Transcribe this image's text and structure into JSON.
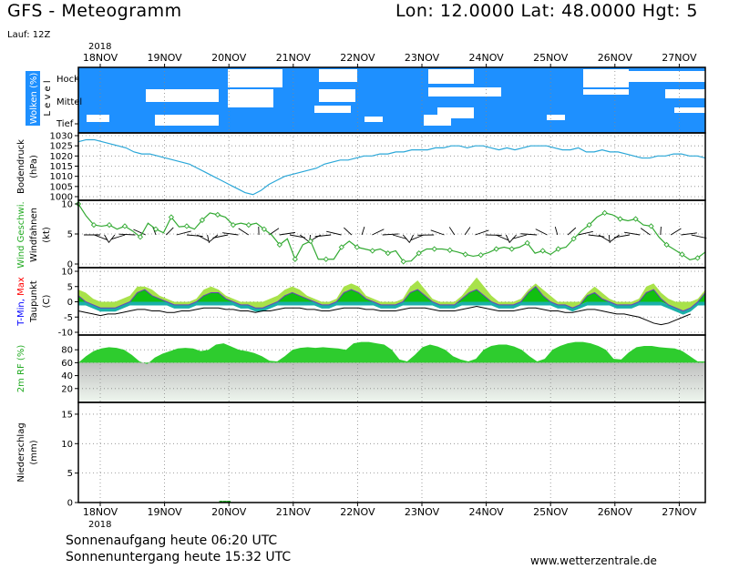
{
  "header": {
    "title": "GFS - Meteogramm",
    "coords": "Lon: 12.0000 Lat: 48.0000 Hgt: 5",
    "run": "Lauf: 12Z"
  },
  "footer": {
    "sunrise": "Sonnenaufgang heute 06:20 UTC",
    "sunset": "Sonnenuntergang heute 15:32 UTC",
    "site": "www.wetterzentrale.de"
  },
  "colors": {
    "cloud_bg": "#1e90ff",
    "pressure_line": "#2aa7d8",
    "wind_speed": "#33aa33",
    "precip": "#22aa22",
    "rh_fill": "#2ecc2e",
    "tmin_label": "#0000ff",
    "tmax_label": "#ff0000",
    "wind_label": "#22aa22"
  },
  "chart_data": {
    "type": "line",
    "days": [
      "18NOV",
      "19NOV",
      "20NOV",
      "21NOV",
      "22NOV",
      "23NOV",
      "24NOV",
      "25NOV",
      "26NOV",
      "27NOV"
    ],
    "year": "2018",
    "panels": {
      "clouds": {
        "ylabel": "Wolken (%)",
        "ylabel2": "L e v e l",
        "levels": [
          "Hoch",
          "Mittel",
          "Tief"
        ]
      },
      "pressure": {
        "ylabel": "Bodendruck",
        "unit": "(hPa)",
        "ylim": [
          1000,
          1030
        ],
        "ticks": [
          1000,
          1005,
          1010,
          1015,
          1020,
          1025,
          1030
        ],
        "values": [
          1027,
          1028,
          1028,
          1027,
          1026,
          1025,
          1024,
          1022,
          1021,
          1021,
          1020,
          1019,
          1018,
          1017,
          1016,
          1014,
          1012,
          1010,
          1008,
          1006,
          1004,
          1002,
          1001,
          1003,
          1006,
          1008,
          1010,
          1011,
          1012,
          1013,
          1014,
          1016,
          1017,
          1018,
          1018,
          1019,
          1020,
          1020,
          1021,
          1021,
          1022,
          1022,
          1023,
          1023,
          1023,
          1024,
          1024,
          1025,
          1025,
          1024,
          1025,
          1025,
          1024,
          1023,
          1024,
          1023,
          1024,
          1025,
          1025,
          1025,
          1024,
          1023,
          1023,
          1024,
          1022,
          1022,
          1023,
          1022,
          1022,
          1021,
          1020,
          1019,
          1019,
          1020,
          1020,
          1021,
          1021,
          1020,
          1020,
          1019
        ]
      },
      "wind": {
        "ylabel": "Wind Geschwi.",
        "ylabel2": "Windfahnen",
        "unit": "(kt)",
        "ylim": [
          0,
          10
        ],
        "ticks": [
          0,
          5,
          10
        ],
        "values": [
          10,
          8,
          6.5,
          6.3,
          6.5,
          5.8,
          6.3,
          5.5,
          4.5,
          6.8,
          5.8,
          5.2,
          7.8,
          6.2,
          6.3,
          5.8,
          7.3,
          8.5,
          8.2,
          7.8,
          6.5,
          6.8,
          6.5,
          6.8,
          5.8,
          4.8,
          3.2,
          4.2,
          0.8,
          3.2,
          3.8,
          0.8,
          0.8,
          0.8,
          2.8,
          3.8,
          2.8,
          2.5,
          2.2,
          2.5,
          1.8,
          2.2,
          0.4,
          0.5,
          1.8,
          2.5,
          2.5,
          2.5,
          2.3,
          2.0,
          1.6,
          1.3,
          1.5,
          1.9,
          2.5,
          2.8,
          2.5,
          2.8,
          3.5,
          1.8,
          2.2,
          1.6,
          2.5,
          2.8,
          4.2,
          5.5,
          6.5,
          7.8,
          8.5,
          8.2,
          7.5,
          7.2,
          7.5,
          6.5,
          6.3,
          4.5,
          3.2,
          2.4,
          1.6,
          0.7,
          1.0,
          2.0
        ]
      },
      "temperature": {
        "ylabel_parts": [
          "T-Min,",
          "Max"
        ],
        "ylabel2": "Taupunkt",
        "unit": "(C)",
        "ylim": [
          -10,
          10
        ],
        "ticks": [
          -10,
          -5,
          0,
          5,
          10
        ],
        "temp": [
          2,
          0,
          -1,
          -2,
          -2,
          -2,
          -1,
          0,
          3,
          4,
          2,
          1,
          0,
          -1,
          -1,
          -1,
          0,
          2,
          3,
          3,
          1,
          0,
          -1,
          -1,
          -2,
          -2,
          -1,
          0,
          2,
          3,
          2,
          1,
          0,
          -1,
          -1,
          0,
          3,
          4,
          3,
          1,
          0,
          -1,
          -1,
          -1,
          0,
          3,
          4,
          2,
          0,
          -1,
          -1,
          -1,
          1,
          3,
          4,
          2,
          0,
          -1,
          -1,
          -1,
          0,
          3,
          5,
          2,
          0,
          -1,
          -1,
          -2,
          -1,
          2,
          3,
          1,
          0,
          -1,
          -1,
          -1,
          0,
          3,
          4,
          1,
          -1,
          -2,
          -3,
          -2,
          0,
          3
        ],
        "tmax": [
          4,
          3,
          1,
          0,
          0,
          0,
          1,
          2,
          5,
          5,
          4,
          2,
          1,
          0,
          0,
          0,
          1,
          4,
          5,
          4,
          2,
          1,
          0,
          0,
          0,
          0,
          1,
          2,
          4,
          5,
          4,
          2,
          1,
          0,
          0,
          1,
          5,
          6,
          5,
          2,
          1,
          0,
          0,
          0,
          1,
          5,
          7,
          4,
          1,
          0,
          0,
          0,
          2,
          5,
          8,
          5,
          2,
          0,
          0,
          0,
          1,
          4,
          6,
          4,
          2,
          0,
          0,
          0,
          0,
          3,
          5,
          3,
          1,
          0,
          0,
          0,
          1,
          5,
          6,
          3,
          1,
          0,
          0,
          0,
          1,
          4
        ],
        "dew": [
          -3,
          -3.5,
          -4,
          -4.5,
          -4,
          -4,
          -3.5,
          -3,
          -2.5,
          -2.5,
          -3,
          -3,
          -3.5,
          -3.5,
          -3,
          -3,
          -2.5,
          -2,
          -2,
          -2,
          -2.5,
          -2.5,
          -3,
          -3,
          -3.5,
          -3,
          -3,
          -2.5,
          -2,
          -2,
          -2,
          -2.5,
          -2.5,
          -3,
          -3,
          -2.5,
          -2,
          -2,
          -2,
          -2.5,
          -2.5,
          -3,
          -3,
          -3,
          -2.5,
          -2,
          -2,
          -2,
          -2.5,
          -3,
          -3,
          -3,
          -2.5,
          -2,
          -1.5,
          -2,
          -2.5,
          -3,
          -3,
          -3,
          -2.5,
          -2,
          -2,
          -2.5,
          -3,
          -3,
          -3.5,
          -3.5,
          -3,
          -2.5,
          -2.5,
          -3,
          -3.5,
          -4,
          -4,
          -4.5,
          -5,
          -6,
          -7,
          -7.5,
          -7,
          -6,
          -5,
          -4
        ]
      },
      "humidity": {
        "ylabel": "2m RF (%)",
        "ylim": [
          0,
          100
        ],
        "ticks": [
          20,
          40,
          60,
          80
        ],
        "values": [
          60,
          70,
          78,
          82,
          84,
          83,
          80,
          72,
          62,
          58,
          68,
          74,
          78,
          82,
          83,
          82,
          78,
          80,
          88,
          90,
          85,
          80,
          78,
          75,
          70,
          63,
          62,
          70,
          80,
          83,
          84,
          83,
          84,
          83,
          82,
          80,
          90,
          92,
          92,
          90,
          88,
          80,
          65,
          62,
          72,
          84,
          88,
          85,
          80,
          70,
          65,
          62,
          66,
          80,
          86,
          88,
          88,
          85,
          80,
          70,
          62,
          66,
          80,
          86,
          90,
          92,
          92,
          90,
          86,
          80,
          66,
          65,
          76,
          84,
          86,
          86,
          84,
          83,
          82,
          78,
          70,
          62,
          62
        ]
      },
      "precip": {
        "ylabel": "Niederschlag",
        "unit": "(mm)",
        "ylim": [
          0,
          17
        ],
        "ticks": [
          0,
          5,
          10,
          15
        ],
        "bars": [
          {
            "day_offset": 1.0,
            "value": 0.3
          },
          {
            "day_offset": 1.06,
            "value": 0.3
          },
          {
            "day_offset": 1.12,
            "value": 0.3
          }
        ]
      }
    }
  }
}
